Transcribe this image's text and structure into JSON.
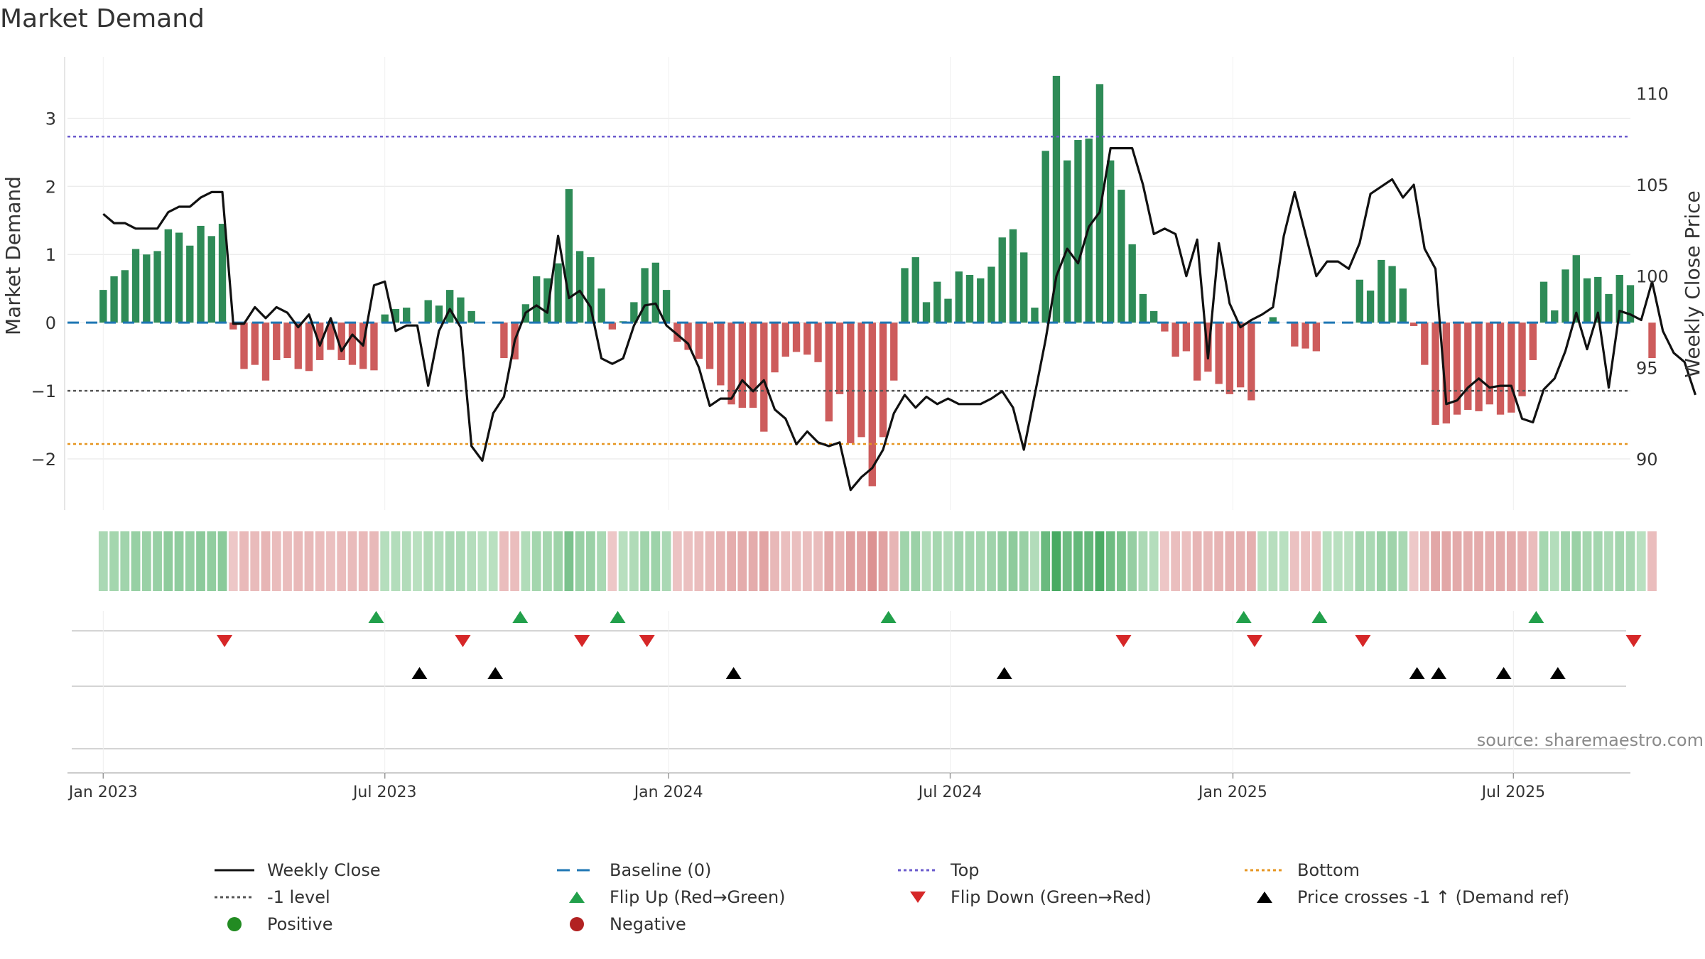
{
  "colors": {
    "positive": "#2e8b57",
    "negative": "#cd5c5c",
    "close": "#111111",
    "baseline": "#1f77b4",
    "top": "#6a5acd",
    "bottom": "#e69520",
    "minus_one": "#555555",
    "flip_up": "#22a04b",
    "flip_down": "#d62728",
    "cross": "#000000",
    "legend_positive": "#228b22",
    "legend_negative": "#b22222",
    "grid": "#e6e6e6"
  },
  "chart_data": {
    "type": "bar",
    "title": "Market Demand",
    "ylabel": "Market Demand",
    "y2label": "Weekly Close Price",
    "source": "source: sharemaestro.com",
    "ylim": [
      -2.75,
      3.9
    ],
    "y2lim": [
      87.2,
      112.0
    ],
    "yticks": [
      -2,
      -1,
      0,
      1,
      2,
      3
    ],
    "ytick_labels": [
      "−2",
      "−1",
      "0",
      "1",
      "2",
      "3"
    ],
    "y2ticks": [
      90,
      95,
      100,
      105,
      110
    ],
    "y2tick_labels": [
      "90",
      "95",
      "100",
      "105",
      "110"
    ],
    "x_domain_weeks": [
      -3.3,
      141.0
    ],
    "xticks": [
      {
        "week": 0,
        "label": "Jan 2023"
      },
      {
        "week": 26,
        "label": "Jul 2023"
      },
      {
        "week": 52.2,
        "label": "Jan 2024"
      },
      {
        "week": 78.2,
        "label": "Jul 2024"
      },
      {
        "week": 104.3,
        "label": "Jan 2025"
      },
      {
        "week": 130.2,
        "label": "Jul 2025"
      }
    ],
    "reference_lines": {
      "top": 2.73,
      "bottom": -1.78,
      "minus_one": -1.0
    },
    "demand": [
      0.48,
      0.68,
      0.77,
      1.08,
      1.0,
      1.05,
      1.37,
      1.32,
      1.13,
      1.42,
      1.27,
      1.45,
      -0.1,
      -0.68,
      -0.62,
      -0.85,
      -0.55,
      -0.52,
      -0.68,
      -0.71,
      -0.55,
      -0.4,
      -0.55,
      -0.62,
      -0.68,
      -0.7,
      0.12,
      0.2,
      0.22,
      0.0,
      0.33,
      0.25,
      0.48,
      0.37,
      0.17,
      0.0,
      0.0,
      -0.52,
      -0.54,
      0.27,
      0.68,
      0.65,
      0.87,
      1.96,
      1.05,
      0.96,
      0.5,
      -0.1,
      0.02,
      0.3,
      0.8,
      0.88,
      0.48,
      -0.28,
      -0.4,
      -0.53,
      -0.68,
      -0.92,
      -1.2,
      -1.25,
      -1.25,
      -1.6,
      -0.73,
      -0.5,
      -0.43,
      -0.47,
      -0.58,
      -1.45,
      -1.05,
      -1.77,
      -1.68,
      -2.4,
      -1.68,
      -0.85,
      0.8,
      0.96,
      0.3,
      0.6,
      0.35,
      0.75,
      0.7,
      0.65,
      0.82,
      1.25,
      1.37,
      1.03,
      0.22,
      2.52,
      3.62,
      2.38,
      2.68,
      2.7,
      3.5,
      2.38,
      1.95,
      1.15,
      0.42,
      0.17,
      -0.13,
      -0.5,
      -0.42,
      -0.85,
      -0.72,
      -0.9,
      -1.05,
      -0.95,
      -1.14,
      0.0,
      0.08,
      0.0,
      -0.35,
      -0.38,
      -0.42,
      0.0,
      0.0,
      0.0,
      0.63,
      0.47,
      0.92,
      0.83,
      0.5,
      -0.05,
      -0.62,
      -1.5,
      -1.48,
      -1.35,
      -1.28,
      -1.3,
      -1.2,
      -1.35,
      -1.32,
      -1.08,
      -0.55,
      0.6,
      0.18,
      0.78,
      0.99,
      0.65,
      0.67,
      0.42,
      0.7,
      0.55,
      0.0,
      -0.52
    ],
    "close": [
      103.4,
      102.9,
      102.9,
      102.6,
      102.6,
      102.6,
      103.5,
      103.8,
      103.8,
      104.3,
      104.6,
      104.6,
      97.4,
      97.4,
      98.3,
      97.7,
      98.3,
      98.0,
      97.2,
      97.9,
      96.2,
      97.7,
      95.9,
      96.8,
      96.2,
      99.5,
      99.7,
      97.0,
      97.3,
      97.3,
      94.0,
      97.0,
      98.2,
      97.2,
      90.7,
      89.9,
      92.5,
      93.4,
      96.5,
      98.0,
      98.4,
      98.0,
      102.2,
      98.8,
      99.2,
      98.3,
      95.5,
      95.2,
      95.5,
      97.3,
      98.4,
      98.5,
      97.3,
      96.8,
      96.3,
      95.0,
      92.9,
      93.3,
      93.3,
      94.3,
      93.7,
      94.3,
      92.7,
      92.2,
      90.8,
      91.5,
      90.9,
      90.7,
      90.9,
      88.3,
      89.0,
      89.5,
      90.5,
      92.5,
      93.5,
      92.8,
      93.4,
      93.0,
      93.3,
      93.0,
      93.0,
      93.0,
      93.3,
      93.7,
      92.8,
      90.5,
      93.5,
      96.5,
      100.0,
      101.5,
      100.7,
      102.7,
      103.5,
      107.0,
      107.0,
      107.0,
      105.0,
      102.3,
      102.6,
      102.3,
      100.0,
      102.0,
      95.5,
      101.8,
      98.5,
      97.2,
      97.6,
      97.9,
      98.3,
      102.2,
      104.6,
      102.3,
      100.0,
      100.8,
      100.8,
      100.4,
      101.8,
      104.5,
      104.9,
      105.3,
      104.3,
      105.0,
      101.5,
      100.4,
      93.0,
      93.2,
      93.9,
      94.4,
      93.9,
      94.0,
      94.0,
      92.2,
      92.0,
      93.8,
      94.4,
      95.9,
      98.0,
      96.0,
      98.0,
      93.9,
      98.1,
      97.9,
      97.6,
      99.7,
      97.0,
      95.8,
      95.3,
      93.5
    ],
    "flip_up_weeks": [
      25.2,
      38.5,
      47.5,
      72.5,
      105.3,
      112.3,
      132.3
    ],
    "flip_down_weeks": [
      11.2,
      33.2,
      44.2,
      50.2,
      94.2,
      106.3,
      116.3,
      141.3
    ],
    "price_cross_weeks": [
      29.2,
      36.2,
      58.2,
      83.2,
      121.3,
      123.3,
      129.3,
      134.3
    ],
    "series": [
      {
        "name": "Market Demand",
        "kind": "bar"
      },
      {
        "name": "Weekly Close",
        "kind": "line"
      }
    ]
  },
  "legend": {
    "weekly_close": "Weekly Close",
    "baseline": "Baseline (0)",
    "top": "Top",
    "bottom": "Bottom",
    "minus_one": "-1 level",
    "flip_up": "Flip Up (Red→Green)",
    "flip_down": "Flip Down (Green→Red)",
    "price_cross": "Price crosses -1 ↑ (Demand ref)",
    "positive": "Positive",
    "negative": "Negative"
  }
}
